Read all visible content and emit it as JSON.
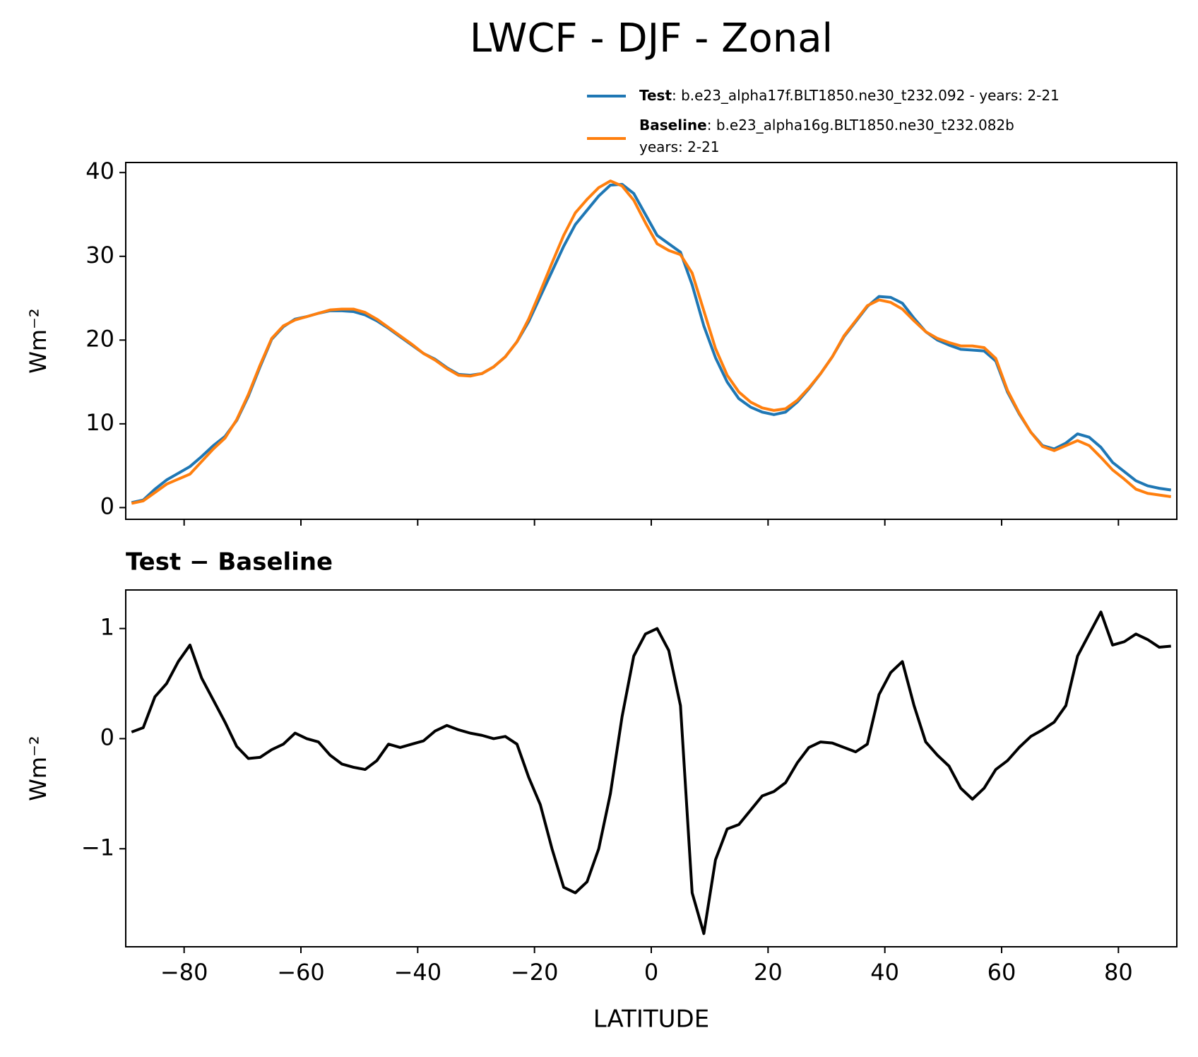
{
  "chart_data": [
    {
      "type": "line",
      "title": "LWCF - DJF - Zonal",
      "ylabel": "Wm⁻²",
      "legend": "upper right",
      "x": [
        -89,
        -87,
        -85,
        -83,
        -81,
        -79,
        -77,
        -75,
        -73,
        -71,
        -69,
        -67,
        -65,
        -63,
        -61,
        -59,
        -57,
        -55,
        -53,
        -51,
        -49,
        -47,
        -45,
        -43,
        -41,
        -39,
        -37,
        -35,
        -33,
        -31,
        -29,
        -27,
        -25,
        -23,
        -21,
        -19,
        -17,
        -15,
        -13,
        -11,
        -9,
        -7,
        -5,
        -3,
        -1,
        1,
        3,
        5,
        7,
        9,
        11,
        13,
        15,
        17,
        19,
        21,
        23,
        25,
        27,
        29,
        31,
        33,
        35,
        37,
        39,
        41,
        43,
        45,
        47,
        49,
        51,
        53,
        55,
        57,
        59,
        61,
        63,
        65,
        67,
        69,
        71,
        73,
        75,
        77,
        79,
        81,
        83,
        85,
        87,
        89
      ],
      "series": [
        {
          "name": "Test",
          "description": [
            ": b.e23_alpha17f.BLT1850.ne30_t232.092 - years: 2-21"
          ],
          "color": "#1f77b4",
          "values": [
            0.6,
            0.9,
            2.2,
            3.3,
            4.1,
            4.9,
            6.1,
            7.4,
            8.5,
            10.4,
            13.3,
            16.8,
            20.1,
            21.6,
            22.5,
            22.8,
            23.2,
            23.5,
            23.5,
            23.4,
            23.0,
            22.3,
            21.4,
            20.4,
            19.4,
            18.4,
            17.7,
            16.7,
            15.9,
            15.8,
            16.0,
            16.8,
            18.0,
            19.8,
            22.2,
            25.2,
            28.2,
            31.2,
            33.8,
            35.5,
            37.2,
            38.5,
            38.6,
            37.5,
            35.0,
            32.5,
            31.5,
            30.5,
            26.6,
            21.7,
            17.9,
            15.0,
            13.0,
            12.0,
            11.4,
            11.1,
            11.4,
            12.6,
            14.2,
            16.0,
            18.0,
            20.4,
            22.2,
            24.0,
            25.2,
            25.1,
            24.4,
            22.6,
            21.0,
            20.0,
            19.4,
            18.9,
            18.8,
            18.7,
            17.5,
            13.8,
            11.2,
            9.0,
            7.4,
            7.0,
            7.7,
            8.8,
            8.4,
            7.2,
            5.4,
            4.3,
            3.2,
            2.6,
            2.3,
            2.1
          ]
        },
        {
          "name": "Baseline",
          "description": [
            ": b.e23_alpha16g.BLT1850.ne30_t232.082b",
            "years: 2-21"
          ],
          "color": "#ff7f0e",
          "values": [
            0.5,
            0.8,
            1.8,
            2.8,
            3.4,
            4.0,
            5.5,
            7.0,
            8.3,
            10.5,
            13.5,
            17.0,
            20.2,
            21.7,
            22.4,
            22.8,
            23.2,
            23.6,
            23.7,
            23.7,
            23.3,
            22.5,
            21.5,
            20.5,
            19.5,
            18.4,
            17.6,
            16.6,
            15.8,
            15.7,
            16.0,
            16.8,
            18.0,
            19.8,
            22.5,
            25.8,
            29.2,
            32.5,
            35.2,
            36.8,
            38.2,
            39.0,
            38.4,
            36.7,
            34.0,
            31.5,
            30.7,
            30.2,
            28.0,
            23.5,
            19.0,
            15.8,
            13.8,
            12.6,
            11.9,
            11.6,
            11.8,
            12.8,
            14.3,
            16.0,
            18.0,
            20.5,
            22.3,
            24.1,
            24.8,
            24.5,
            23.7,
            22.3,
            21.0,
            20.2,
            19.7,
            19.3,
            19.3,
            19.1,
            17.8,
            14.0,
            11.3,
            9.0,
            7.3,
            6.8,
            7.4,
            8.0,
            7.4,
            6.0,
            4.5,
            3.4,
            2.2,
            1.7,
            1.5,
            1.3
          ]
        }
      ],
      "xlim": [
        -90,
        90
      ],
      "xticks": [
        -80,
        -60,
        -40,
        -20,
        0,
        20,
        40,
        60,
        80
      ],
      "ylim": [
        -1.4,
        41.2
      ],
      "yticks": [
        0,
        10,
        20,
        30,
        40
      ]
    },
    {
      "type": "line",
      "title": "Test − Baseline",
      "ylabel": "Wm⁻²",
      "xlabel": "LATITUDE",
      "color": "#000000",
      "x": [
        -89,
        -87,
        -85,
        -83,
        -81,
        -79,
        -77,
        -75,
        -73,
        -71,
        -69,
        -67,
        -65,
        -63,
        -61,
        -59,
        -57,
        -55,
        -53,
        -51,
        -49,
        -47,
        -45,
        -43,
        -41,
        -39,
        -37,
        -35,
        -33,
        -31,
        -29,
        -27,
        -25,
        -23,
        -21,
        -19,
        -17,
        -15,
        -13,
        -11,
        -9,
        -7,
        -5,
        -3,
        -1,
        1,
        3,
        5,
        7,
        9,
        11,
        13,
        15,
        17,
        19,
        21,
        23,
        25,
        27,
        29,
        31,
        33,
        35,
        37,
        39,
        41,
        43,
        45,
        47,
        49,
        51,
        53,
        55,
        57,
        59,
        61,
        63,
        65,
        67,
        69,
        71,
        73,
        75,
        77,
        79,
        81,
        83,
        85,
        87,
        89
      ],
      "values": [
        0.06,
        0.1,
        0.38,
        0.5,
        0.7,
        0.85,
        0.55,
        0.35,
        0.15,
        -0.07,
        -0.18,
        -0.17,
        -0.1,
        -0.05,
        0.05,
        0.0,
        -0.03,
        -0.15,
        -0.23,
        -0.26,
        -0.28,
        -0.2,
        -0.05,
        -0.08,
        -0.05,
        -0.02,
        0.07,
        0.12,
        0.08,
        0.05,
        0.03,
        0.0,
        0.02,
        -0.05,
        -0.35,
        -0.6,
        -1.0,
        -1.35,
        -1.4,
        -1.3,
        -1.0,
        -0.5,
        0.2,
        0.75,
        0.95,
        1.0,
        0.8,
        0.3,
        -1.4,
        -1.77,
        -1.1,
        -0.82,
        -0.78,
        -0.65,
        -0.52,
        -0.48,
        -0.4,
        -0.22,
        -0.08,
        -0.03,
        -0.04,
        -0.08,
        -0.12,
        -0.05,
        0.4,
        0.6,
        0.7,
        0.3,
        -0.03,
        -0.15,
        -0.25,
        -0.45,
        -0.55,
        -0.45,
        -0.28,
        -0.2,
        -0.08,
        0.02,
        0.08,
        0.15,
        0.3,
        0.75,
        0.95,
        1.15,
        0.85,
        0.88,
        0.95,
        0.9,
        0.83,
        0.84
      ],
      "xlim": [
        -90,
        90
      ],
      "xticks": [
        {
          "value": -80,
          "label": "−80"
        },
        {
          "value": -60,
          "label": "−60"
        },
        {
          "value": -40,
          "label": "−40"
        },
        {
          "value": -20,
          "label": "−20"
        },
        0,
        20,
        40,
        60,
        80
      ],
      "ylim": [
        -1.89,
        1.35
      ],
      "yticks": [
        {
          "value": -1,
          "label": "−1"
        },
        0,
        1
      ]
    }
  ]
}
